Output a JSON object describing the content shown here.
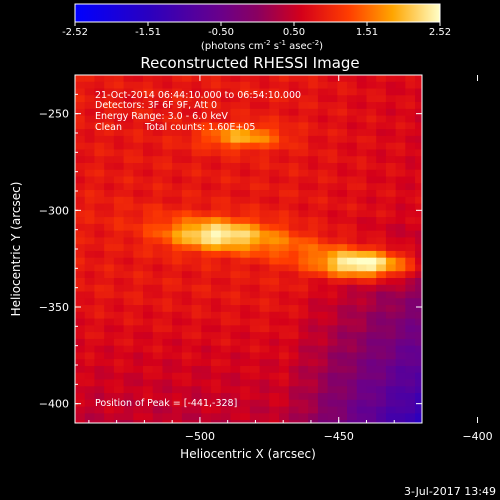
{
  "chart_data": {
    "type": "heatmap",
    "title": "Reconstructed RHESSI Image",
    "xlabel": "Heliocentric X (arcsec)",
    "ylabel": "Heliocentric Y (arcsec)",
    "xlim": [
      -545,
      -420
    ],
    "ylim": [
      -410,
      -230
    ],
    "xticks": [
      -500,
      -450,
      -400
    ],
    "yticks": [
      -250,
      -300,
      -350,
      -400
    ],
    "colorbar": {
      "range": [
        -2.52,
        2.52
      ],
      "ticks": [
        "-2.52",
        "-1.51",
        "-0.50",
        "0.50",
        "1.51",
        "2.52"
      ],
      "units_prefix": "(photons cm",
      "units_sup1": "-2",
      "units_mid1": " s",
      "units_sup2": "-1",
      "units_mid2": " asec",
      "units_sup3": "-2",
      "units_suffix": ")",
      "colormap": "hot"
    },
    "annotations": {
      "time_range": "21-Oct-2014 06:44:10.000 to 06:54:10.000",
      "detectors": "Detectors: 3F 6F 9F, Att 0",
      "energy": "Energy Range: 3.0 - 6.0 keV",
      "algorithm": "Clean",
      "total_counts": "Total counts: 1.60E+05",
      "peak": "Position of Peak = [-441,-328]"
    },
    "peak_position": [
      -441,
      -328
    ],
    "sources": [
      {
        "x": -441,
        "y": -328,
        "intensity": 2.52
      },
      {
        "x": -495,
        "y": -313,
        "intensity": 2.0
      },
      {
        "x": -485,
        "y": -262,
        "intensity": 1.9
      }
    ]
  },
  "footer": {
    "timestamp": "3-Jul-2017 13:49"
  }
}
